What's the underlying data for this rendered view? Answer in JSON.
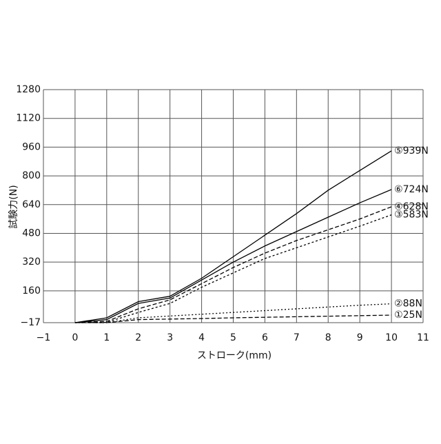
{
  "chart_data": {
    "type": "line",
    "x_label": "ストローク(mm)",
    "y_label": "試験力(N)",
    "x": [
      0,
      1,
      2,
      3,
      4,
      5,
      6,
      7,
      8,
      9,
      10
    ],
    "series": [
      {
        "name": "⑤939N",
        "color": "#000000",
        "dash": "none",
        "values": [
          -17,
          10,
          100,
          130,
          230,
          350,
          470,
          590,
          720,
          830,
          939
        ]
      },
      {
        "name": "⑥724N",
        "color": "#000000",
        "dash": "none",
        "values": [
          -17,
          0,
          90,
          120,
          220,
          320,
          410,
          490,
          570,
          650,
          724
        ]
      },
      {
        "name": "④628N",
        "color": "#000000",
        "dash": "6,3",
        "values": [
          -17,
          -10,
          60,
          110,
          200,
          290,
          370,
          440,
          500,
          560,
          628
        ]
      },
      {
        "name": "③583N",
        "color": "#000000",
        "dash": "3,3",
        "values": [
          -17,
          -15,
          40,
          90,
          180,
          260,
          340,
          400,
          460,
          520,
          583
        ]
      },
      {
        "name": "②88N",
        "color": "#000000",
        "dash": "2,3",
        "values": [
          -17,
          -17,
          10,
          20,
          30,
          40,
          50,
          60,
          70,
          80,
          88
        ]
      },
      {
        "name": "①25N",
        "color": "#000000",
        "dash": "6,3",
        "values": [
          -17,
          -17,
          0,
          3,
          6,
          10,
          13,
          16,
          19,
          22,
          25
        ]
      }
    ],
    "xlim": [
      -1,
      11
    ],
    "xticks": [
      {
        "value": -1,
        "label": "−1"
      },
      0,
      1,
      2,
      3,
      4,
      5,
      6,
      7,
      8,
      9,
      10,
      11
    ],
    "ylim": [
      -17,
      1280
    ],
    "yticks": [
      {
        "value": -17,
        "label": "−17"
      },
      160,
      320,
      480,
      640,
      800,
      960,
      1120,
      1280
    ],
    "grid": true
  }
}
